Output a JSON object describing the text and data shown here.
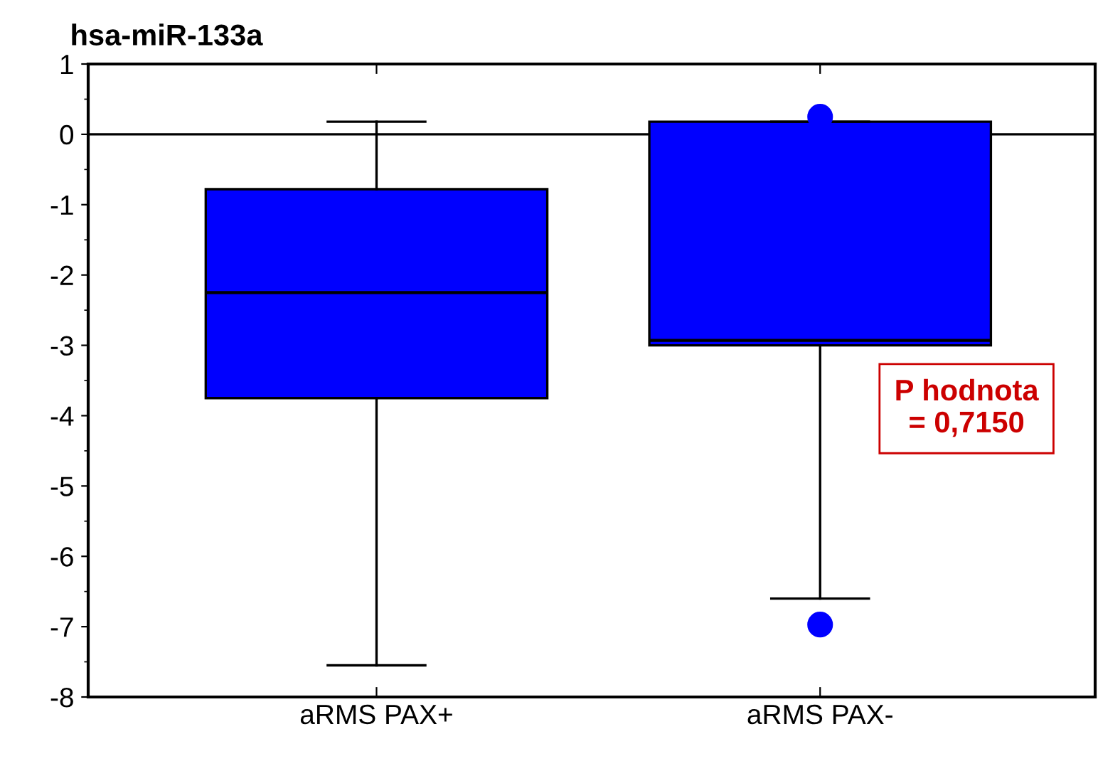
{
  "chart_data": {
    "type": "box",
    "title": "hsa-miR-133a",
    "categories": [
      "aRMS PAX+",
      "aRMS PAX-"
    ],
    "boxes": [
      {
        "low": -7.55,
        "q1": -3.75,
        "median": -2.25,
        "q3": -0.78,
        "high": 0.18
      },
      {
        "low": -6.6,
        "q1": -3.0,
        "median": -2.93,
        "q3": 0.18,
        "high": 0.18,
        "outliers": [
          0.25,
          -6.97
        ]
      }
    ],
    "color": "#0000ff",
    "ylim": [
      -8,
      1
    ],
    "yticks": [
      -8,
      -7,
      -6,
      -5,
      -4,
      -3,
      -2,
      -1,
      0,
      1
    ],
    "ref_lines": [
      {
        "axis": "y",
        "value": 0,
        "color": "#000000"
      }
    ],
    "annotations": [
      "P hodnota\n= 0,7150"
    ],
    "grid": false,
    "legend": false
  }
}
